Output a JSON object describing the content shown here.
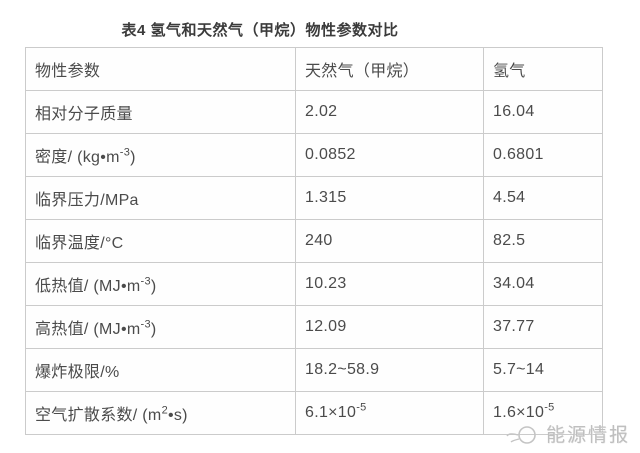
{
  "page": {
    "title": "表4 氢气和天然气（甲烷）物性参数对比"
  },
  "table": {
    "columns": [
      "物性参数",
      "天然气（甲烷）",
      "氢气"
    ],
    "rows": [
      {
        "param": "相对分子质量",
        "values": [
          "2.02",
          "16.04"
        ]
      },
      {
        "param": "密度/ (kg•m^{-3})",
        "values": [
          "0.0852",
          "0.6801"
        ]
      },
      {
        "param": "临界压力/MPa",
        "values": [
          "1.315",
          "4.54"
        ]
      },
      {
        "param": "临界温度/°C",
        "values": [
          "240",
          "82.5"
        ]
      },
      {
        "param": "低热值/ (MJ•m^{-3})",
        "values": [
          "10.23",
          "34.04"
        ]
      },
      {
        "param": "高热值/ (MJ•m^{-3})",
        "values": [
          "12.09",
          "37.77"
        ]
      },
      {
        "param": "爆炸极限/%",
        "values": [
          "18.2~58.9",
          "5.7~14"
        ]
      },
      {
        "param": "空气扩散系数/ (m^{2}•s)",
        "values": [
          "6.1×10^{-5}",
          "1.6×10^{-5}"
        ]
      }
    ]
  },
  "watermark": {
    "label": "能源情报",
    "icon": "energy-intel-logo-icon"
  },
  "colors": {
    "text": "#4b4b4b",
    "title": "#3b3b3b",
    "border": "#cbcbcb",
    "watermark": "#bfbfbf",
    "background": "#ffffff"
  }
}
